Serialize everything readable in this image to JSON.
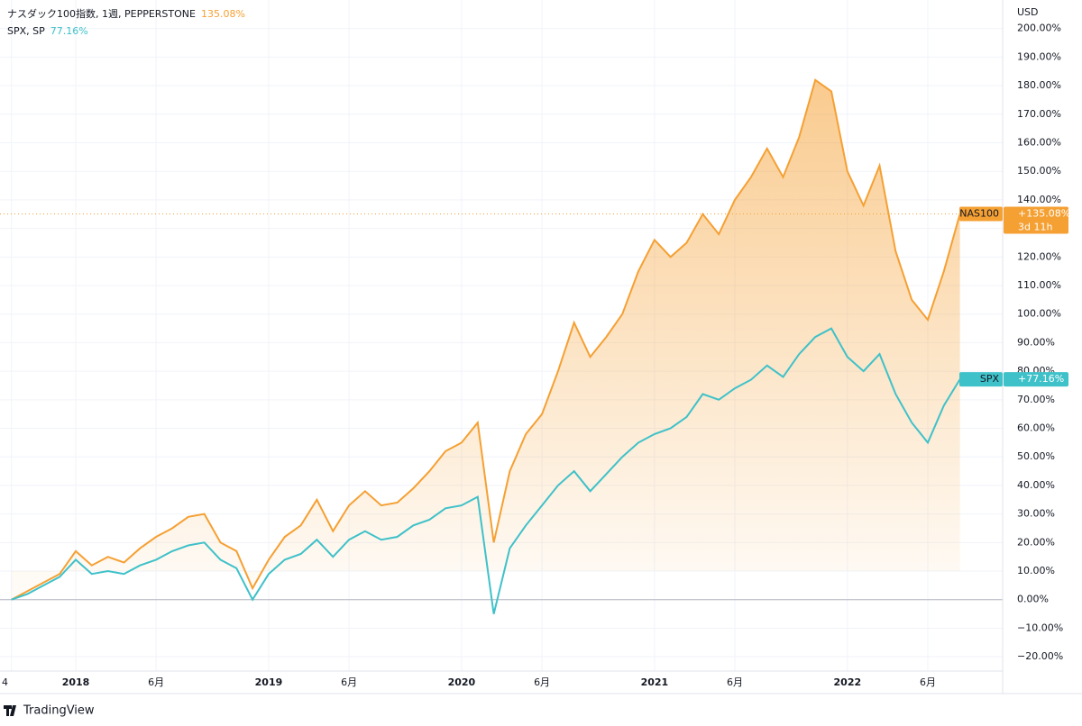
{
  "chart_data": {
    "type": "line",
    "legend": "ナスダック100指数, 1週, PEPPERSTONE",
    "y_axis_label": "USD",
    "brand": "TradingView",
    "countdown": "3d 11h",
    "categories": [
      "4",
      null,
      null,
      null,
      "2018",
      null,
      null,
      null,
      null,
      "6月",
      null,
      null,
      null,
      null,
      null,
      null,
      "2019",
      null,
      null,
      null,
      null,
      "6月",
      null,
      null,
      null,
      null,
      null,
      null,
      "2020",
      null,
      null,
      null,
      null,
      "6月",
      null,
      null,
      null,
      null,
      null,
      null,
      "2021",
      null,
      null,
      null,
      null,
      "6月",
      null,
      null,
      null,
      null,
      null,
      null,
      "2022",
      null,
      null,
      null,
      null,
      "6月",
      null,
      null
    ],
    "series": [
      {
        "name": "NAS100",
        "legend_name": "ナスダック100指数, 1週, PEPPERSTONE",
        "legend_value": "135.08%",
        "tag_value": "+135.08%",
        "color": "#f5a033",
        "values": [
          0,
          3,
          6,
          9,
          17,
          12,
          15,
          13,
          18,
          22,
          25,
          29,
          30,
          20,
          17,
          4,
          14,
          22,
          26,
          35,
          24,
          33,
          38,
          33,
          34,
          39,
          45,
          52,
          55,
          62,
          20,
          45,
          58,
          65,
          80,
          97,
          85,
          92,
          100,
          115,
          126,
          120,
          125,
          135,
          128,
          140,
          148,
          158,
          148,
          162,
          182,
          178,
          150,
          138,
          152,
          122,
          105,
          98,
          115,
          135.08
        ]
      },
      {
        "name": "SPX",
        "legend_name": "SPX, SP",
        "legend_value": "77.16%",
        "tag_value": "+77.16%",
        "color": "#3fc1c9",
        "values": [
          0,
          2,
          5,
          8,
          14,
          9,
          10,
          9,
          12,
          14,
          17,
          19,
          20,
          14,
          11,
          0,
          9,
          14,
          16,
          21,
          15,
          21,
          24,
          21,
          22,
          26,
          28,
          32,
          33,
          36,
          -5,
          18,
          26,
          33,
          40,
          45,
          38,
          44,
          50,
          55,
          58,
          60,
          64,
          72,
          70,
          74,
          77,
          82,
          78,
          86,
          92,
          95,
          85,
          80,
          86,
          72,
          62,
          55,
          68,
          77.16
        ]
      }
    ],
    "ylim": [
      -25,
      210
    ],
    "yticks": [
      {
        "value": -20,
        "label": "−20.00%"
      },
      {
        "value": -10,
        "label": "−10.00%"
      },
      {
        "value": 0,
        "label": "0.00%"
      },
      {
        "value": 10,
        "label": "10.00%"
      },
      {
        "value": 20,
        "label": "20.00%"
      },
      {
        "value": 30,
        "label": "30.00%"
      },
      {
        "value": 40,
        "label": "40.00%"
      },
      {
        "value": 50,
        "label": "50.00%"
      },
      {
        "value": 60,
        "label": "60.00%"
      },
      {
        "value": 70,
        "label": "70.00%"
      },
      {
        "value": 80,
        "label": "80.00%"
      },
      {
        "value": 90,
        "label": "90.00%"
      },
      {
        "value": 100,
        "label": "100.00%"
      },
      {
        "value": 110,
        "label": "110.00%"
      },
      {
        "value": 120,
        "label": "120.00%"
      },
      {
        "value": 130,
        "label": "130.00%"
      },
      {
        "value": 140,
        "label": "140.00%"
      },
      {
        "value": 150,
        "label": "150.00%"
      },
      {
        "value": 160,
        "label": "160.00%"
      },
      {
        "value": 170,
        "label": "170.00%"
      },
      {
        "value": 180,
        "label": "180.00%"
      },
      {
        "value": 190,
        "label": "190.00%"
      },
      {
        "value": 200,
        "label": "200.00%"
      }
    ],
    "grid": true
  }
}
